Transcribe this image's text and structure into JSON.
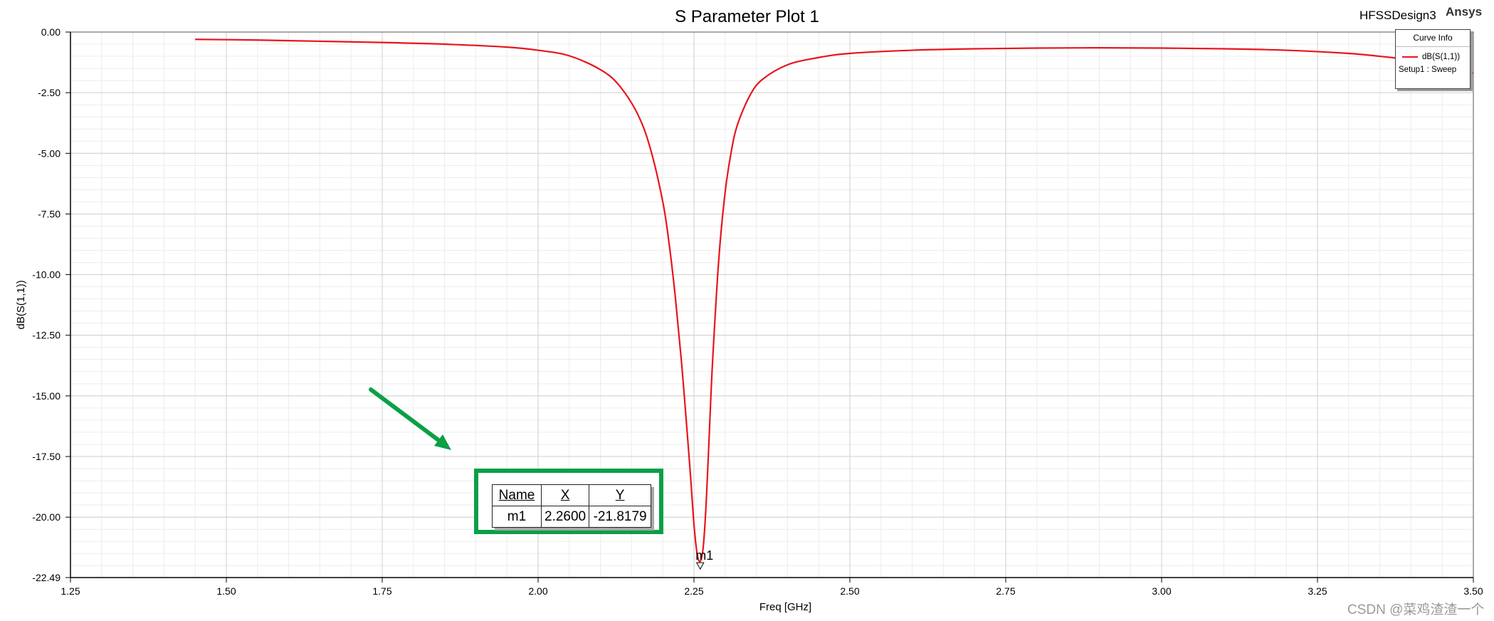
{
  "header": {
    "design_name": "HFSSDesign3",
    "brand": "Ansys"
  },
  "legend": {
    "title": "Curve Info",
    "series_label": "dB(S(1,1))",
    "setup_label": "Setup1 : Sweep"
  },
  "marker": {
    "label": "m1",
    "table": {
      "headers": [
        "Name",
        "X",
        "Y"
      ],
      "row": [
        "m1",
        "2.2600",
        "-21.8179"
      ]
    }
  },
  "watermark": "CSDN @菜鸡渣渣一个",
  "colors": {
    "curve": "#e8151c",
    "highlight_box": "#0aa046",
    "arrow": "#0aa046"
  },
  "chart_data": {
    "type": "line",
    "title": "S Parameter Plot 1",
    "xlabel": "Freq [GHz]",
    "ylabel": "dB(S(1,1))",
    "xlim": [
      1.25,
      3.5
    ],
    "ylim": [
      -22.49,
      0
    ],
    "x_ticks": [
      "1.25",
      "1.50",
      "1.75",
      "2.00",
      "2.25",
      "2.50",
      "2.75",
      "3.00",
      "3.25",
      "3.50"
    ],
    "y_ticks": [
      "0.00",
      "-2.50",
      "-5.00",
      "-7.50",
      "-10.00",
      "-12.50",
      "-15.00",
      "-17.50",
      "-20.00",
      "-22.49"
    ],
    "grid": true,
    "legend_position": "top-right",
    "series": [
      {
        "name": "dB(S(1,1))",
        "x": [
          1.45,
          1.55,
          1.65,
          1.75,
          1.85,
          1.95,
          2.0,
          2.05,
          2.1,
          2.13,
          2.16,
          2.18,
          2.2,
          2.21,
          2.22,
          2.23,
          2.24,
          2.245,
          2.25,
          2.255,
          2.26,
          2.265,
          2.27,
          2.275,
          2.28,
          2.29,
          2.3,
          2.31,
          2.32,
          2.34,
          2.36,
          2.4,
          2.45,
          2.5,
          2.6,
          2.7,
          2.8,
          2.9,
          3.0,
          3.1,
          3.2,
          3.3,
          3.35,
          3.4,
          3.45,
          3.5
        ],
        "y": [
          -0.3,
          -0.33,
          -0.38,
          -0.43,
          -0.5,
          -0.62,
          -0.75,
          -0.98,
          -1.55,
          -2.2,
          -3.4,
          -4.8,
          -7.0,
          -8.7,
          -10.9,
          -13.6,
          -16.8,
          -18.5,
          -20.3,
          -21.5,
          -21.82,
          -21.2,
          -19.2,
          -16.3,
          -13.5,
          -9.3,
          -6.6,
          -4.9,
          -3.8,
          -2.6,
          -1.95,
          -1.35,
          -1.05,
          -0.88,
          -0.75,
          -0.69,
          -0.66,
          -0.65,
          -0.66,
          -0.69,
          -0.75,
          -0.88,
          -1.0,
          -1.15,
          -1.38,
          -1.7
        ]
      }
    ]
  }
}
